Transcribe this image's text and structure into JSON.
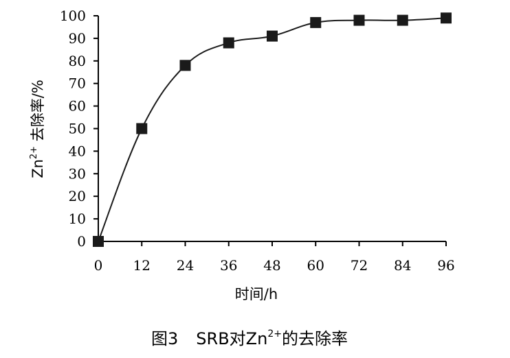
{
  "chart_data": {
    "type": "line",
    "title": "",
    "caption": {
      "prefix": "图3",
      "main": "SRB对Zn",
      "superscript": "2+",
      "suffix": "的去除率"
    },
    "xlabel": "时间/h",
    "ylabel": {
      "base": "Zn",
      "superscript": "2+",
      "text": " 去除率/%"
    },
    "x": [
      0,
      12,
      24,
      36,
      48,
      60,
      72,
      84,
      96
    ],
    "series": [
      {
        "values": [
          0,
          50,
          78,
          88,
          91,
          97,
          98,
          98,
          99
        ]
      }
    ],
    "xlim": [
      0,
      96
    ],
    "ylim": [
      0,
      100
    ],
    "xticks": [
      "0",
      "12",
      "24",
      "36",
      "48",
      "60",
      "72",
      "84",
      "96"
    ],
    "yticks": [
      "0",
      "10",
      "20",
      "30",
      "40",
      "50",
      "60",
      "70",
      "80",
      "90",
      "100"
    ],
    "grid": false,
    "legend": "none",
    "colors": {
      "line": "#1a1a1a",
      "marker": "#1a1a1a",
      "axis": "#000000"
    }
  }
}
